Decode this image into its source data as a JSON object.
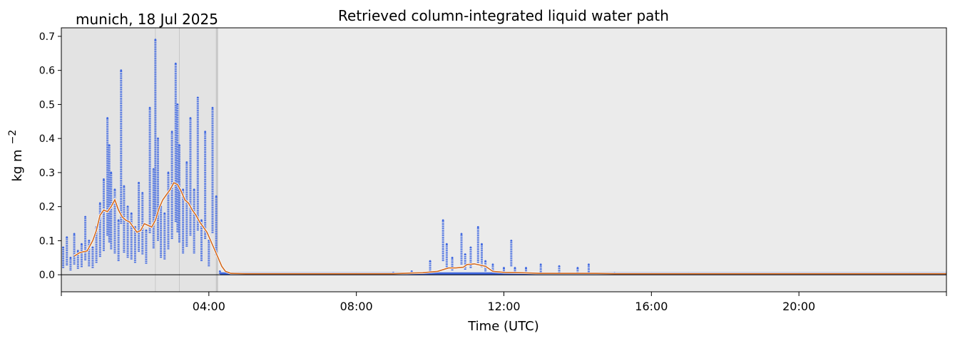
{
  "chart_data": {
    "type": "scatter",
    "title": "Retrieved column-integrated liquid water path",
    "subtitle": "munich, 18 Jul 2025",
    "xlabel": "Time (UTC)",
    "ylabel": "kg m",
    "ylabel_exponent": "−2",
    "xlim": [
      0,
      24
    ],
    "ylim": [
      -0.05,
      0.725
    ],
    "x_unit": "hours",
    "x_ticks": [
      0,
      4,
      8,
      12,
      16,
      20,
      24
    ],
    "x_tick_labels": [
      "",
      "04:00",
      "08:00",
      "12:00",
      "16:00",
      "20:00",
      ""
    ],
    "y_ticks": [
      0.0,
      0.1,
      0.2,
      0.3,
      0.4,
      0.5,
      0.6,
      0.7
    ],
    "y_tick_labels": [
      "0.0",
      "0.1",
      "0.2",
      "0.3",
      "0.4",
      "0.5",
      "0.6",
      "0.7"
    ],
    "grid": false,
    "flag_lines_x": [
      2.55,
      3.2,
      4.22
    ],
    "colors": {
      "plot_bg": "#ebebeb",
      "flag_shading": "#dcdcdc",
      "points": "#4169e1",
      "mean_line": "#d2691e",
      "zero_line": "#000000"
    },
    "series": [
      {
        "kind": "points",
        "x": [
          0.05,
          0.15,
          0.25,
          0.35,
          0.45,
          0.55,
          0.65,
          0.75,
          0.85,
          0.95,
          1.05,
          1.15,
          1.25,
          1.3,
          1.35,
          1.45,
          1.55,
          1.62,
          1.7,
          1.8,
          1.9,
          2.0,
          2.1,
          2.2,
          2.3,
          2.4,
          2.5,
          2.55,
          2.62,
          2.7,
          2.8,
          2.9,
          3.0,
          3.1,
          3.15,
          3.2,
          3.3,
          3.4,
          3.5,
          3.6,
          3.7,
          3.8,
          3.9,
          4.0,
          4.1,
          4.2,
          4.3,
          4.5,
          4.8,
          5.2,
          6.0,
          7.0,
          8.0,
          9.0,
          9.5,
          10.0,
          10.35,
          10.45,
          10.6,
          10.85,
          10.95,
          11.1,
          11.3,
          11.4,
          11.5,
          11.7,
          12.0,
          12.2,
          12.3,
          12.6,
          13.0,
          13.5,
          14.0,
          14.3,
          15.0,
          16.0,
          17.0,
          18.0,
          19.0,
          20.0,
          21.0,
          22.0,
          23.0,
          23.8
        ],
        "y": [
          0.08,
          0.11,
          0.05,
          0.12,
          0.07,
          0.09,
          0.17,
          0.1,
          0.08,
          0.14,
          0.21,
          0.28,
          0.46,
          0.38,
          0.3,
          0.25,
          0.16,
          0.6,
          0.26,
          0.2,
          0.18,
          0.14,
          0.27,
          0.24,
          0.13,
          0.49,
          0.31,
          0.69,
          0.4,
          0.2,
          0.18,
          0.3,
          0.42,
          0.62,
          0.5,
          0.38,
          0.25,
          0.33,
          0.46,
          0.25,
          0.52,
          0.16,
          0.42,
          0.1,
          0.49,
          0.23,
          0.01,
          0.003,
          0.004,
          0.002,
          0.003,
          0.003,
          0.004,
          0.006,
          0.01,
          0.04,
          0.16,
          0.09,
          0.05,
          0.12,
          0.06,
          0.08,
          0.14,
          0.09,
          0.04,
          0.03,
          0.02,
          0.1,
          0.02,
          0.02,
          0.03,
          0.025,
          0.02,
          0.03,
          0.005,
          0.004,
          0.004,
          0.003,
          0.003,
          0.004,
          0.003,
          0.003,
          0.004,
          0.003
        ]
      },
      {
        "kind": "line",
        "x": [
          0.35,
          0.5,
          0.7,
          0.85,
          0.95,
          1.05,
          1.15,
          1.25,
          1.35,
          1.45,
          1.55,
          1.65,
          1.75,
          1.85,
          1.95,
          2.05,
          2.15,
          2.25,
          2.35,
          2.45,
          2.55,
          2.65,
          2.75,
          2.85,
          2.95,
          3.05,
          3.15,
          3.25,
          3.35,
          3.45,
          3.55,
          3.65,
          3.75,
          3.85,
          3.95,
          4.05,
          4.15,
          4.25,
          4.35,
          4.45,
          4.6,
          5.0,
          6.0,
          7.0,
          8.0,
          8.5,
          9.0,
          9.5,
          9.8,
          10.0,
          10.2,
          10.5,
          10.7,
          10.9,
          11.0,
          11.2,
          11.5,
          11.7,
          11.9,
          12.0,
          12.5,
          13.0,
          13.5,
          14.0,
          14.5,
          15.0,
          16.0,
          17.0,
          18.0,
          19.0,
          20.0,
          21.0,
          22.0,
          23.0,
          24.0
        ],
        "y": [
          0.055,
          0.065,
          0.07,
          0.1,
          0.13,
          0.175,
          0.19,
          0.185,
          0.2,
          0.22,
          0.19,
          0.17,
          0.16,
          0.155,
          0.14,
          0.125,
          0.13,
          0.15,
          0.145,
          0.14,
          0.16,
          0.195,
          0.22,
          0.235,
          0.25,
          0.27,
          0.265,
          0.245,
          0.22,
          0.21,
          0.19,
          0.175,
          0.155,
          0.14,
          0.125,
          0.1,
          0.075,
          0.05,
          0.025,
          0.01,
          0.004,
          0.003,
          0.003,
          0.003,
          0.003,
          0.003,
          0.003,
          0.005,
          0.006,
          0.008,
          0.01,
          0.02,
          0.02,
          0.022,
          0.03,
          0.032,
          0.025,
          0.01,
          0.008,
          0.007,
          0.006,
          0.004,
          0.004,
          0.004,
          0.004,
          0.003,
          0.003,
          0.003,
          0.003,
          0.003,
          0.003,
          0.003,
          0.003,
          0.003,
          0.003
        ]
      }
    ]
  }
}
